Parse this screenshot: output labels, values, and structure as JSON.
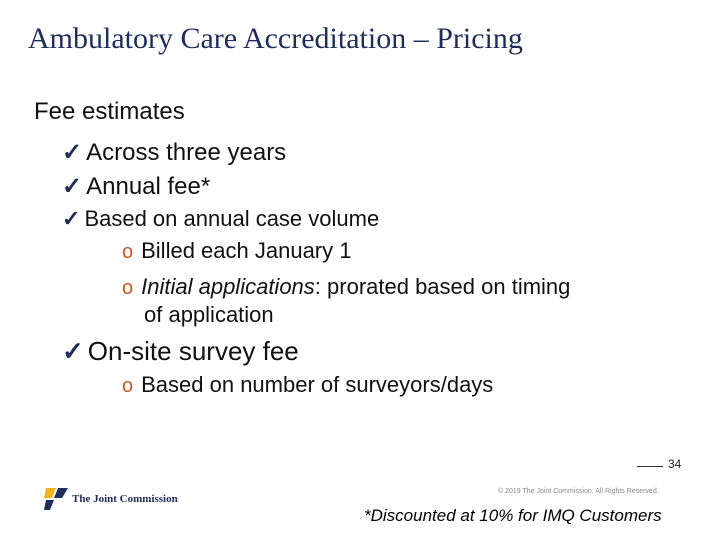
{
  "slide": {
    "title": "Ambulatory Care Accreditation – Pricing",
    "heading": "Fee estimates",
    "check_glyph": "✓",
    "sub_bullet_glyph": "o",
    "items": {
      "across_three_years": "Across three years",
      "annual_fee": "Annual fee*",
      "based_on_volume": "Based on annual case volume",
      "billed_january": "Billed each January 1",
      "initial_applications_label": "Initial applications",
      "initial_applications_rest": ": prorated based on timing",
      "initial_applications_cont": "of application",
      "onsite_fee": "On-site survey fee",
      "based_on_surveyors": "Based on number of surveyors/days"
    }
  },
  "footer": {
    "page_number": "34",
    "copyright": "© 2019 The Joint Commission. All Rights Reserved.",
    "discount_note": "*Discounted at 10% for IMQ Customers",
    "logo_text": "The Joint Commission",
    "logo_colors": {
      "gold": "#f2b21b",
      "navy": "#1f2d5a"
    }
  },
  "colors": {
    "title": "#1f2d5a",
    "check": "#1f2d5a",
    "sub_bullet": "#cc5a1e"
  }
}
